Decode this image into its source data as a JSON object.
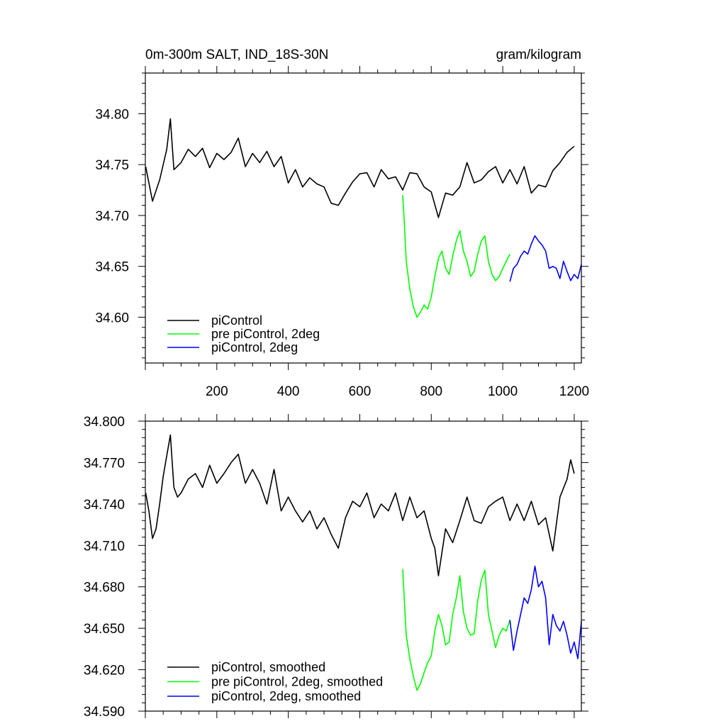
{
  "chart_data": [
    {
      "type": "line",
      "title_left": "0m-300m SALT, IND_18S-30N",
      "title_right": "gram/kilogram",
      "xlabel": "",
      "ylabel": "",
      "xlim": [
        0,
        1220
      ],
      "ylim": [
        34.555,
        34.84
      ],
      "x_ticks": [
        200,
        400,
        600,
        800,
        1000,
        1200
      ],
      "x_tick_labels": [
        "200",
        "400",
        "600",
        "800",
        "1000",
        "1200"
      ],
      "y_ticks": [
        34.6,
        34.65,
        34.7,
        34.75,
        34.8
      ],
      "y_tick_labels": [
        "34.60",
        "34.65",
        "34.70",
        "34.75",
        "34.80"
      ],
      "grid": false,
      "legend_position": "bottom-left",
      "series": [
        {
          "name": "piControl",
          "color": "#000000",
          "x": [
            1,
            20,
            40,
            60,
            70,
            80,
            100,
            120,
            140,
            160,
            180,
            200,
            220,
            240,
            260,
            280,
            300,
            320,
            340,
            360,
            380,
            400,
            420,
            440,
            460,
            480,
            500,
            520,
            540,
            560,
            580,
            600,
            620,
            640,
            660,
            680,
            700,
            720,
            740,
            760,
            780,
            800,
            820,
            840,
            860,
            880,
            900,
            920,
            940,
            960,
            980,
            1000,
            1020,
            1040,
            1060,
            1080,
            1100,
            1120,
            1140,
            1160,
            1180,
            1200
          ],
          "values": [
            34.748,
            34.714,
            34.735,
            34.765,
            34.795,
            34.745,
            34.752,
            34.765,
            34.758,
            34.766,
            34.747,
            34.761,
            34.755,
            34.762,
            34.776,
            34.748,
            34.761,
            34.752,
            34.763,
            34.748,
            34.758,
            34.732,
            34.745,
            34.728,
            34.737,
            34.731,
            34.728,
            34.712,
            34.71,
            34.722,
            34.733,
            34.741,
            34.742,
            34.728,
            34.745,
            34.736,
            34.738,
            34.725,
            34.742,
            34.741,
            34.728,
            34.723,
            34.698,
            34.722,
            34.72,
            34.728,
            34.752,
            34.732,
            34.735,
            34.743,
            34.748,
            34.732,
            34.745,
            34.731,
            34.748,
            34.722,
            34.73,
            34.728,
            34.744,
            34.752,
            34.762,
            34.768
          ]
        },
        {
          "name": "pre piControl, 2deg",
          "color": "#00ff00",
          "x": [
            720,
            725,
            730,
            740,
            750,
            760,
            770,
            780,
            790,
            800,
            810,
            820,
            830,
            840,
            850,
            860,
            870,
            880,
            890,
            900,
            910,
            920,
            930,
            940,
            950,
            960,
            970,
            980,
            990,
            1000,
            1010,
            1020
          ],
          "values": [
            34.72,
            34.69,
            34.655,
            34.628,
            34.61,
            34.6,
            34.605,
            34.612,
            34.608,
            34.62,
            34.64,
            34.658,
            34.665,
            34.648,
            34.642,
            34.66,
            34.675,
            34.685,
            34.665,
            34.655,
            34.64,
            34.645,
            34.662,
            34.675,
            34.68,
            34.655,
            34.642,
            34.636,
            34.64,
            34.648,
            34.655,
            34.662
          ]
        },
        {
          "name": "piControl, 2deg",
          "color": "#0000ff",
          "x": [
            1020,
            1030,
            1040,
            1050,
            1060,
            1070,
            1080,
            1090,
            1100,
            1110,
            1120,
            1130,
            1140,
            1150,
            1160,
            1170,
            1180,
            1190,
            1200,
            1210,
            1220
          ],
          "values": [
            34.635,
            34.648,
            34.652,
            34.66,
            34.665,
            34.662,
            34.672,
            34.68,
            34.675,
            34.671,
            34.665,
            34.648,
            34.65,
            34.648,
            34.638,
            34.655,
            34.645,
            34.636,
            34.642,
            34.638,
            34.652
          ]
        }
      ]
    },
    {
      "type": "line",
      "xlabel": "",
      "ylabel": "",
      "xlim": [
        0,
        1220
      ],
      "ylim": [
        34.59,
        34.8
      ],
      "x_ticks": [
        200,
        400,
        600,
        800,
        1000,
        1200
      ],
      "y_ticks": [
        34.59,
        34.62,
        34.65,
        34.68,
        34.71,
        34.74,
        34.77,
        34.8
      ],
      "y_tick_labels": [
        "34.590",
        "34.620",
        "34.650",
        "34.680",
        "34.710",
        "34.740",
        "34.770",
        "34.800"
      ],
      "grid": false,
      "legend_position": "bottom-left",
      "series": [
        {
          "name": "piControl, smoothed",
          "color": "#000000",
          "x": [
            1,
            10,
            20,
            30,
            40,
            50,
            60,
            70,
            80,
            90,
            100,
            120,
            140,
            160,
            180,
            200,
            220,
            240,
            260,
            280,
            300,
            320,
            340,
            360,
            380,
            400,
            420,
            440,
            460,
            480,
            500,
            520,
            540,
            560,
            580,
            600,
            620,
            640,
            660,
            680,
            700,
            720,
            740,
            760,
            780,
            800,
            810,
            820,
            840,
            860,
            880,
            900,
            920,
            940,
            960,
            980,
            1000,
            1020,
            1040,
            1060,
            1080,
            1100,
            1120,
            1140,
            1160,
            1180,
            1190,
            1200
          ],
          "values": [
            34.748,
            34.735,
            34.715,
            34.722,
            34.74,
            34.76,
            34.775,
            34.79,
            34.752,
            34.745,
            34.748,
            34.758,
            34.762,
            34.752,
            34.768,
            34.755,
            34.762,
            34.77,
            34.776,
            34.755,
            34.765,
            34.755,
            34.74,
            34.765,
            34.735,
            34.745,
            34.735,
            34.727,
            34.735,
            34.722,
            34.73,
            34.718,
            34.708,
            34.73,
            34.742,
            34.738,
            34.748,
            34.73,
            34.74,
            34.735,
            34.748,
            34.728,
            34.745,
            34.73,
            34.735,
            34.715,
            34.708,
            34.688,
            34.722,
            34.712,
            34.728,
            34.745,
            34.728,
            34.726,
            34.738,
            34.742,
            34.745,
            34.728,
            34.74,
            34.728,
            34.742,
            34.725,
            34.73,
            34.706,
            34.745,
            34.758,
            34.772,
            34.762
          ]
        },
        {
          "name": "pre piControl, 2deg, smoothed",
          "color": "#00ff00",
          "x": [
            720,
            725,
            730,
            740,
            750,
            760,
            770,
            780,
            790,
            800,
            810,
            820,
            830,
            840,
            850,
            860,
            870,
            880,
            890,
            900,
            910,
            920,
            930,
            940,
            950,
            960,
            970,
            980,
            990,
            1000,
            1010,
            1020
          ],
          "values": [
            34.693,
            34.668,
            34.645,
            34.628,
            34.615,
            34.605,
            34.61,
            34.618,
            34.625,
            34.63,
            34.648,
            34.66,
            34.652,
            34.638,
            34.64,
            34.66,
            34.672,
            34.688,
            34.662,
            34.65,
            34.645,
            34.646,
            34.67,
            34.685,
            34.692,
            34.66,
            34.648,
            34.636,
            34.645,
            34.65,
            34.648,
            34.656
          ]
        },
        {
          "name": "piControl, 2deg, smoothed",
          "color": "#0000ff",
          "x": [
            1020,
            1030,
            1040,
            1050,
            1060,
            1070,
            1080,
            1090,
            1100,
            1110,
            1120,
            1130,
            1140,
            1150,
            1160,
            1170,
            1180,
            1190,
            1200,
            1210,
            1220
          ],
          "values": [
            34.656,
            34.634,
            34.648,
            34.66,
            34.672,
            34.668,
            34.678,
            34.695,
            34.68,
            34.684,
            34.672,
            34.638,
            34.66,
            34.652,
            34.648,
            34.655,
            34.645,
            34.632,
            34.64,
            34.628,
            34.655
          ]
        }
      ]
    }
  ]
}
